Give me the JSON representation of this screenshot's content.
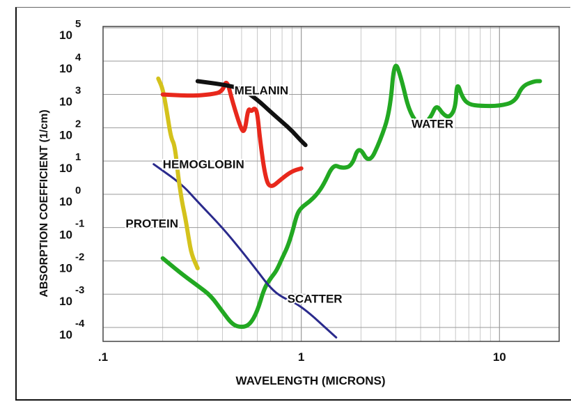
{
  "chart_data": {
    "type": "line",
    "title": "",
    "xlabel": "WAVELENGTH (MICRONS)",
    "ylabel": "ABSORPTION COEFFICIENT (1/cm)",
    "xscale": "log",
    "yscale": "log",
    "xlim": [
      0.1,
      20
    ],
    "ylim": [
      0.0001,
      100000
    ],
    "grid": true,
    "x_ticks": [
      {
        "value": 0.1,
        "label": ".1"
      },
      {
        "value": 1,
        "label": "1"
      },
      {
        "value": 10,
        "label": "10"
      }
    ],
    "y_ticks": [
      {
        "value": 0.0001,
        "base": "10",
        "exp": "-4"
      },
      {
        "value": 0.001,
        "base": "10",
        "exp": "-3"
      },
      {
        "value": 0.01,
        "base": "10",
        "exp": "-2"
      },
      {
        "value": 0.1,
        "base": "10",
        "exp": "-1"
      },
      {
        "value": 1,
        "base": "10",
        "exp": "0"
      },
      {
        "value": 10,
        "base": "10",
        "exp": "1"
      },
      {
        "value": 100,
        "base": "10",
        "exp": "2"
      },
      {
        "value": 1000,
        "base": "10",
        "exp": "3"
      },
      {
        "value": 10000,
        "base": "10",
        "exp": "4"
      },
      {
        "value": 100000,
        "base": "10",
        "exp": "5"
      }
    ],
    "series": [
      {
        "name": "WATER",
        "color": "#22a822",
        "label_at": [
          3.6,
          100
        ],
        "points": [
          [
            0.2,
            0.012
          ],
          [
            0.25,
            0.004
          ],
          [
            0.3,
            0.0018
          ],
          [
            0.35,
            0.0009
          ],
          [
            0.4,
            0.0003
          ],
          [
            0.45,
            0.00012
          ],
          [
            0.5,
            0.0001
          ],
          [
            0.55,
            0.00012
          ],
          [
            0.6,
            0.0003
          ],
          [
            0.65,
            0.0015
          ],
          [
            0.7,
            0.003
          ],
          [
            0.75,
            0.005
          ],
          [
            0.8,
            0.012
          ],
          [
            0.85,
            0.025
          ],
          [
            0.9,
            0.07
          ],
          [
            0.95,
            0.25
          ],
          [
            1.0,
            0.4
          ],
          [
            1.1,
            0.6
          ],
          [
            1.2,
            1.0
          ],
          [
            1.3,
            2.0
          ],
          [
            1.45,
            8.0
          ],
          [
            1.6,
            6.0
          ],
          [
            1.8,
            7.0
          ],
          [
            1.95,
            30.0
          ],
          [
            2.2,
            8.0
          ],
          [
            2.5,
            40.0
          ],
          [
            2.8,
            300.0
          ],
          [
            2.95,
            12000.0
          ],
          [
            3.2,
            3000.0
          ],
          [
            3.5,
            300.0
          ],
          [
            4.0,
            100.0
          ],
          [
            4.5,
            200.0
          ],
          [
            4.8,
            500.0
          ],
          [
            5.2,
            250.0
          ],
          [
            5.6,
            200.0
          ],
          [
            6.0,
            400.0
          ],
          [
            6.1,
            2500.0
          ],
          [
            6.5,
            800.0
          ],
          [
            7.0,
            500.0
          ],
          [
            8.0,
            450.0
          ],
          [
            10.0,
            450.0
          ],
          [
            12.0,
            600.0
          ],
          [
            13.0,
            1800.0
          ],
          [
            15.0,
            2500.0
          ],
          [
            16.0,
            2500.0
          ]
        ]
      },
      {
        "name": "HEMOGLOBIN",
        "color": "#e8281c",
        "label_at": [
          0.2,
          6
        ],
        "points": [
          [
            0.2,
            1000
          ],
          [
            0.28,
            900
          ],
          [
            0.35,
            1000
          ],
          [
            0.4,
            1200
          ],
          [
            0.42,
            3000
          ],
          [
            0.45,
            600
          ],
          [
            0.5,
            80
          ],
          [
            0.52,
            80
          ],
          [
            0.54,
            400
          ],
          [
            0.56,
            300
          ],
          [
            0.58,
            400
          ],
          [
            0.6,
            300
          ],
          [
            0.62,
            40
          ],
          [
            0.66,
            3
          ],
          [
            0.7,
            1.5
          ],
          [
            0.8,
            3
          ],
          [
            0.9,
            5
          ],
          [
            1.0,
            6
          ]
        ]
      },
      {
        "name": "MELANIN",
        "color": "#111111",
        "label_at": [
          0.46,
          1000
        ],
        "points": [
          [
            0.3,
            2500
          ],
          [
            0.4,
            2000
          ],
          [
            0.5,
            1500
          ],
          [
            0.6,
            700
          ],
          [
            0.7,
            300
          ],
          [
            0.8,
            150
          ],
          [
            0.9,
            80
          ],
          [
            1.0,
            40
          ],
          [
            1.05,
            30
          ]
        ]
      },
      {
        "name": "PROTEIN",
        "color": "#d4c21c",
        "label_at": [
          0.13,
          0.1
        ],
        "points": [
          [
            0.19,
            3000
          ],
          [
            0.2,
            1500
          ],
          [
            0.21,
            300
          ],
          [
            0.22,
            50
          ],
          [
            0.23,
            30
          ],
          [
            0.24,
            3
          ],
          [
            0.25,
            0.6
          ],
          [
            0.26,
            0.2
          ],
          [
            0.27,
            0.05
          ],
          [
            0.28,
            0.015
          ],
          [
            0.3,
            0.006
          ]
        ]
      },
      {
        "name": "SCATTER",
        "color": "#2a2a8c",
        "label_at": [
          0.85,
          0.00055
        ],
        "points": [
          [
            0.18,
            8
          ],
          [
            0.25,
            2
          ],
          [
            0.3,
            0.6
          ],
          [
            0.4,
            0.1
          ],
          [
            0.5,
            0.02
          ],
          [
            0.6,
            0.005
          ],
          [
            0.7,
            0.0015
          ],
          [
            0.8,
            0.0008
          ],
          [
            1.0,
            0.00045
          ],
          [
            1.5,
            5e-05
          ]
        ]
      }
    ]
  }
}
